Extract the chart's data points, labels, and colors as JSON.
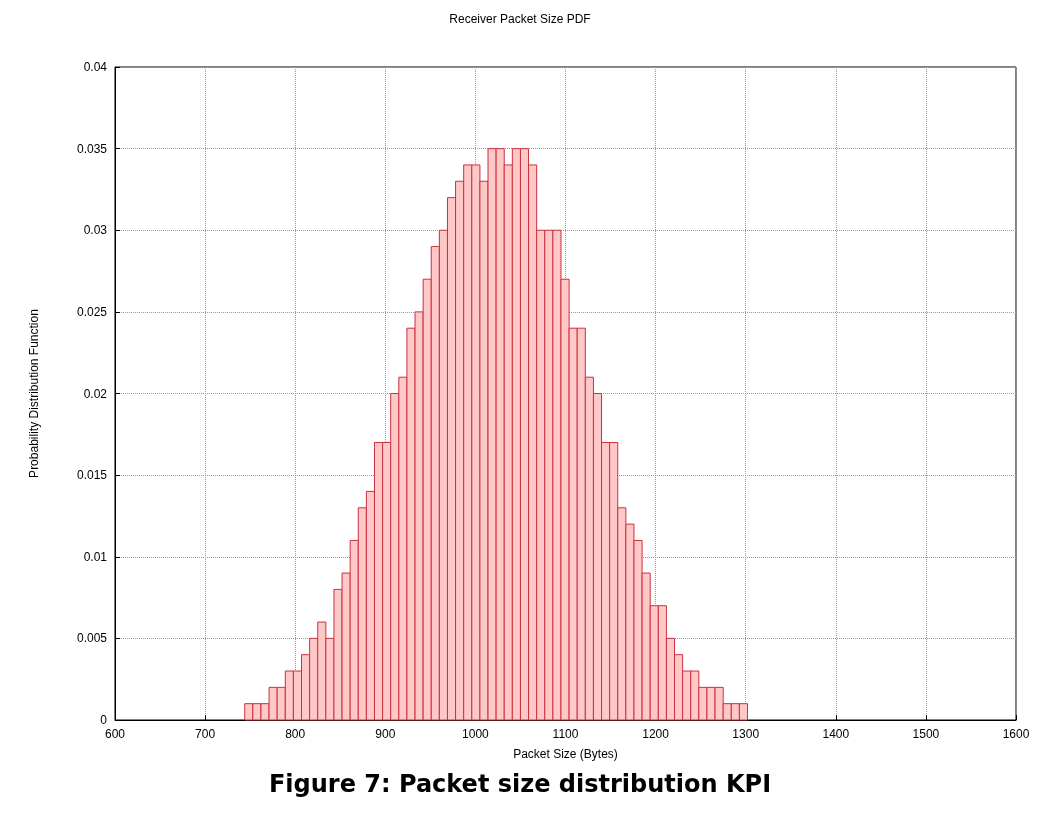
{
  "chart_data": {
    "type": "histogram",
    "title": "Receiver Packet Size PDF",
    "xlabel": "Packet Size (Bytes)",
    "ylabel": "Probability Distribution Function",
    "annotations": [
      "Figure 7: Packet size distribution KPI"
    ],
    "bins": [
      744,
      753,
      762,
      771,
      780,
      789,
      798,
      807,
      816,
      825,
      834,
      843,
      852,
      861,
      870,
      879,
      888,
      897,
      906,
      915,
      924,
      933,
      942,
      951,
      960,
      969,
      978,
      987,
      996,
      1005,
      1014,
      1023,
      1032,
      1041,
      1050,
      1059,
      1068,
      1077,
      1086,
      1095,
      1104,
      1113,
      1122,
      1131,
      1140,
      1149,
      1158,
      1167,
      1176,
      1185,
      1194,
      1203,
      1212,
      1221,
      1230,
      1239,
      1248,
      1257,
      1266,
      1275,
      1284,
      1293,
      1302
    ],
    "values": [
      0.001,
      0.001,
      0.001,
      0.002,
      0.002,
      0.003,
      0.003,
      0.004,
      0.005,
      0.006,
      0.005,
      0.008,
      0.009,
      0.011,
      0.013,
      0.014,
      0.017,
      0.017,
      0.02,
      0.021,
      0.024,
      0.025,
      0.027,
      0.029,
      0.03,
      0.032,
      0.033,
      0.034,
      0.034,
      0.033,
      0.035,
      0.035,
      0.034,
      0.035,
      0.035,
      0.034,
      0.03,
      0.03,
      0.03,
      0.027,
      0.024,
      0.024,
      0.021,
      0.02,
      0.017,
      0.017,
      0.013,
      0.012,
      0.011,
      0.009,
      0.007,
      0.007,
      0.005,
      0.004,
      0.003,
      0.003,
      0.002,
      0.002,
      0.002,
      0.001,
      0.001,
      0.001
    ],
    "color": "#ffc8c8",
    "xlim": [
      600,
      1600
    ],
    "xticks": [
      600,
      700,
      800,
      900,
      1000,
      1100,
      1200,
      1300,
      1400,
      1500,
      1600
    ],
    "ylim": [
      0,
      0.04
    ],
    "yticks": [
      0,
      0.005,
      0.01,
      0.015,
      0.02,
      0.025,
      0.03,
      0.035,
      0.04
    ],
    "grid": true
  }
}
